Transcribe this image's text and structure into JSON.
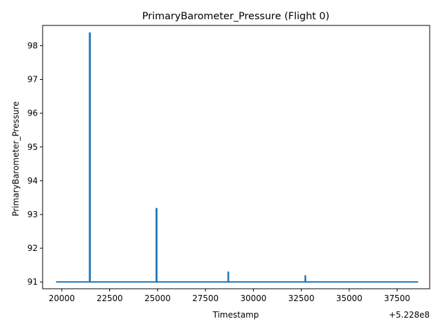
{
  "chart_data": {
    "type": "line",
    "title": "PrimaryBarometer_Pressure (Flight 0)",
    "xlabel": "Timestamp",
    "ylabel": "PrimaryBarometer_Pressure",
    "x_offset_label": "+5.228e8",
    "xlim": [
      19000,
      39200
    ],
    "ylim": [
      90.8,
      98.6
    ],
    "xticks": [
      20000,
      22500,
      25000,
      27500,
      30000,
      32500,
      35000,
      37500
    ],
    "yticks": [
      91,
      92,
      93,
      94,
      95,
      96,
      97,
      98
    ],
    "grid": false,
    "color": "#1f77b4",
    "series": [
      {
        "x": [
          19700,
          21450,
          21450,
          21480,
          21480,
          24930,
          24930,
          24960,
          24960,
          28680,
          28680,
          28700,
          28700,
          32700,
          32700,
          32720,
          32720,
          38600
        ],
        "y": [
          91.0,
          91.0,
          98.37,
          98.37,
          91.0,
          91.0,
          93.17,
          93.17,
          91.0,
          91.0,
          91.29,
          91.29,
          91.0,
          91.0,
          91.18,
          91.18,
          91.0,
          91.0
        ]
      }
    ]
  }
}
